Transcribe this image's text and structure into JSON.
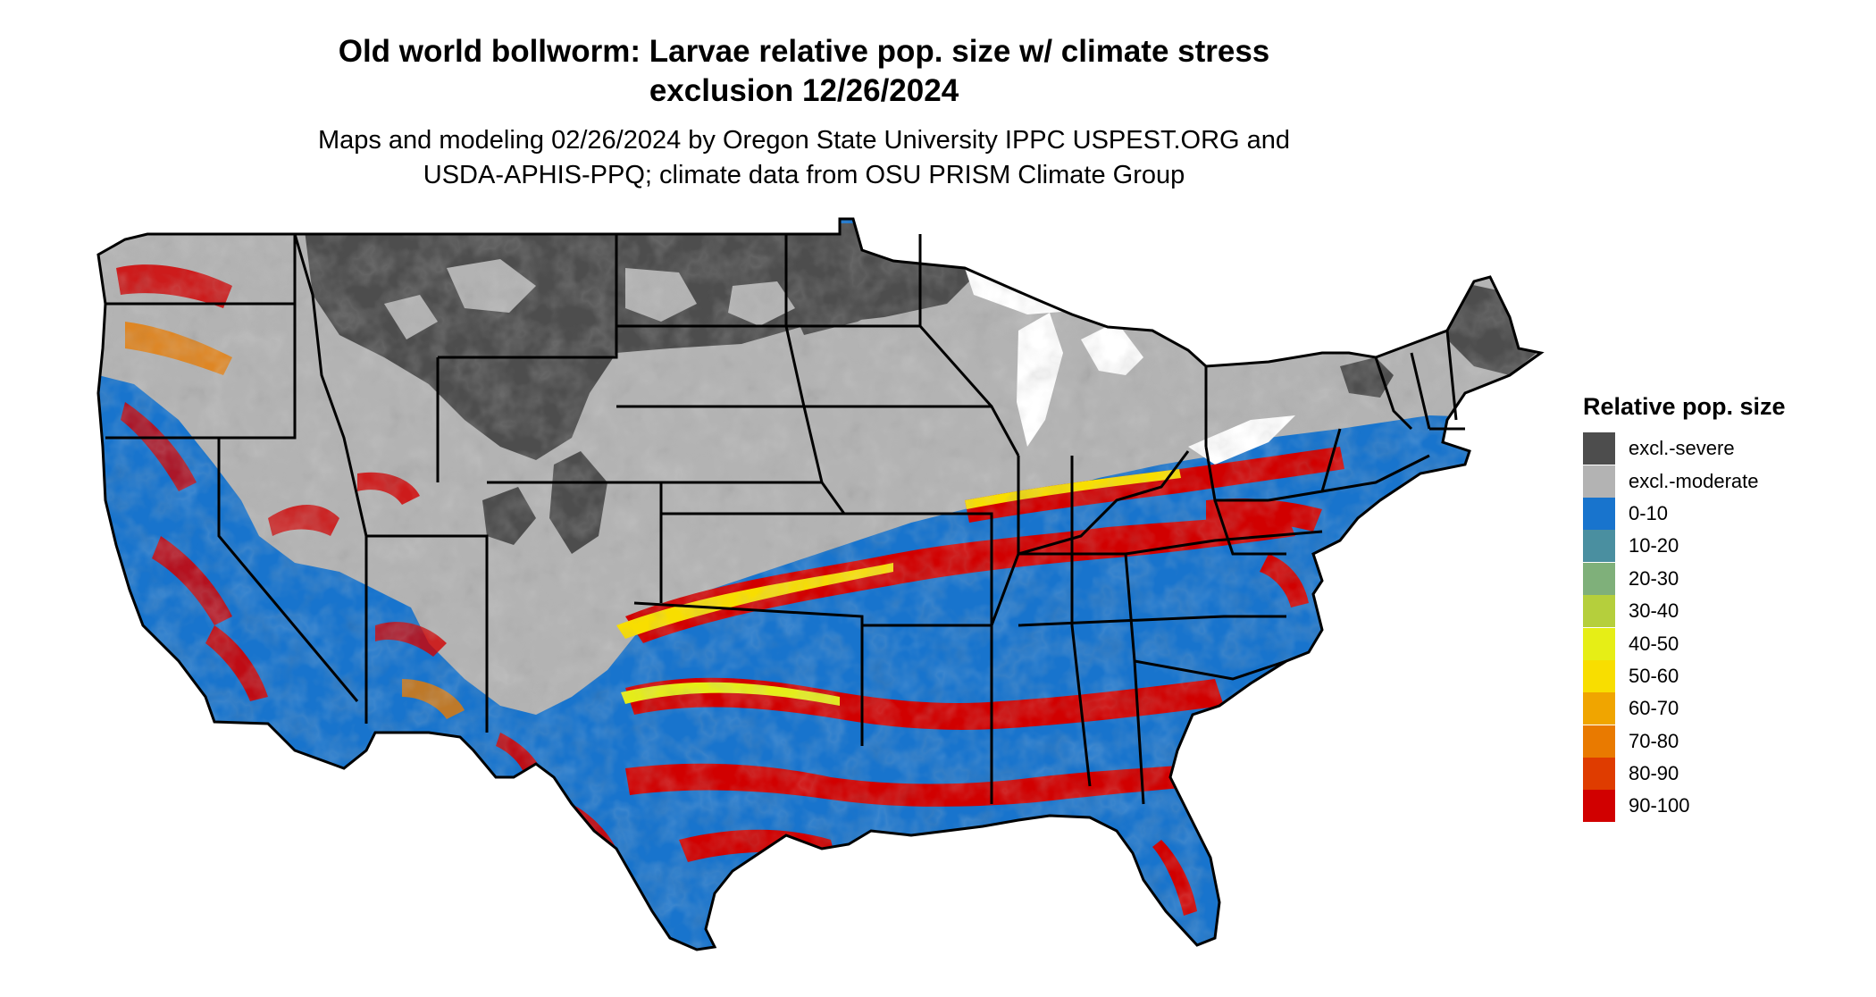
{
  "title": {
    "line1": "Old world bollworm: Larvae relative pop. size w/ climate stress",
    "line2": "exclusion 12/26/2024"
  },
  "subtitle": {
    "line1": "Maps and modeling 02/26/2024 by Oregon State University IPPC USPEST.ORG and",
    "line2": "USDA-APHIS-PPQ; climate data from OSU PRISM Climate Group"
  },
  "legend": {
    "title": "Relative pop. size",
    "items": [
      {
        "label": "excl.-severe",
        "color": "#4d4d4d"
      },
      {
        "label": "excl.-moderate",
        "color": "#b3b3b3"
      },
      {
        "label": "0-10",
        "color": "#1874cd"
      },
      {
        "label": "10-20",
        "color": "#4a8fa0"
      },
      {
        "label": "20-30",
        "color": "#7fb07a"
      },
      {
        "label": "30-40",
        "color": "#b5cf3c"
      },
      {
        "label": "40-50",
        "color": "#e6ee16"
      },
      {
        "label": "50-60",
        "color": "#f8de00"
      },
      {
        "label": "60-70",
        "color": "#f0a500"
      },
      {
        "label": "70-80",
        "color": "#e97a00"
      },
      {
        "label": "80-90",
        "color": "#df3c00"
      },
      {
        "label": "90-100",
        "color": "#d10000"
      }
    ]
  }
}
